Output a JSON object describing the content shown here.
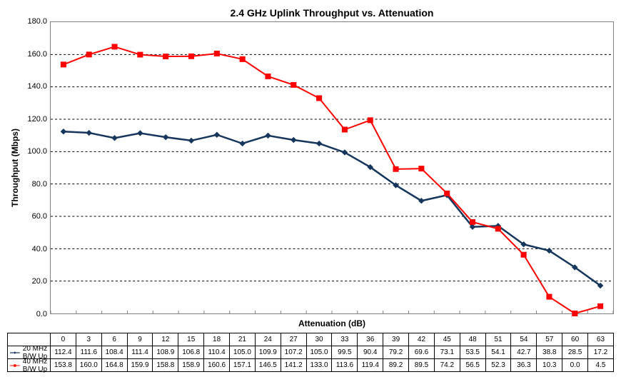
{
  "chart": {
    "title": "2.4 GHz Uplink Throughput vs. Attenuation",
    "title_fontsize": 14,
    "ylabel": "Throughput (Mbps)",
    "xlabel": "Attenuation (dB)",
    "label_fontsize": 12,
    "background_color": "#ffffff",
    "plot_border_color": "#808080",
    "grid_color": "#000000",
    "grid_dash": "3,3",
    "ylim": [
      0.0,
      180.0
    ],
    "ytick_step": 20.0,
    "yticks": [
      "0.0",
      "20.0",
      "40.0",
      "60.0",
      "80.0",
      "100.0",
      "120.0",
      "140.0",
      "160.0",
      "180.0"
    ],
    "x_categories": [
      "0",
      "3",
      "6",
      "9",
      "12",
      "15",
      "18",
      "21",
      "24",
      "27",
      "30",
      "33",
      "36",
      "39",
      "42",
      "45",
      "48",
      "51",
      "54",
      "57",
      "60",
      "63"
    ],
    "series": [
      {
        "name": "20 MHz B/W Up",
        "color": "#16365c",
        "marker": "diamond",
        "marker_size": 7,
        "line_width": 2.5,
        "values": [
          112.4,
          111.6,
          108.4,
          111.4,
          108.9,
          106.8,
          110.4,
          105.0,
          109.9,
          107.2,
          105.0,
          99.5,
          90.4,
          79.2,
          69.6,
          73.1,
          53.5,
          54.1,
          42.7,
          38.8,
          28.5,
          17.2
        ]
      },
      {
        "name": "40 MHz B/W Up",
        "color": "#ff0000",
        "marker": "square",
        "marker_size": 7,
        "line_width": 2,
        "values": [
          153.8,
          160.0,
          164.8,
          159.9,
          158.8,
          158.9,
          160.6,
          157.1,
          146.5,
          141.2,
          133.0,
          113.6,
          119.4,
          89.2,
          89.5,
          74.2,
          56.5,
          52.3,
          36.3,
          10.3,
          0.0,
          4.5
        ]
      }
    ]
  }
}
